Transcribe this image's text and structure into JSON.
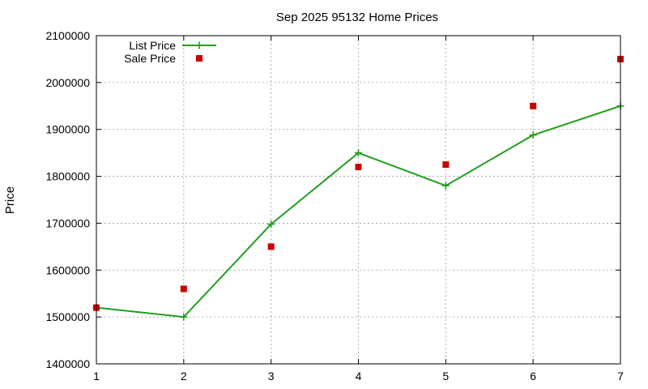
{
  "chart_data": {
    "type": "line",
    "title": "Sep 2025 95132 Home Prices",
    "xlabel": "",
    "ylabel": "Price",
    "x": [
      1,
      2,
      3,
      4,
      5,
      6,
      7
    ],
    "xlim": [
      1,
      7
    ],
    "ylim": [
      1400000,
      2100000
    ],
    "xticks": [
      1,
      2,
      3,
      4,
      5,
      6,
      7
    ],
    "yticks": [
      1400000,
      1500000,
      1600000,
      1700000,
      1800000,
      1900000,
      2000000,
      2100000
    ],
    "grid": true,
    "legend_position": "top-left",
    "series": [
      {
        "name": "List Price",
        "style": "line-with-plus-markers",
        "color": "#1f9e1f",
        "values": [
          1520000,
          1500000,
          1698000,
          1850000,
          1780000,
          1888000,
          1950000
        ]
      },
      {
        "name": "Sale Price",
        "style": "square-markers",
        "color": "#cc0000",
        "values": [
          1520000,
          1560000,
          1650000,
          1820000,
          1825000,
          1950000,
          2050000
        ]
      }
    ]
  }
}
